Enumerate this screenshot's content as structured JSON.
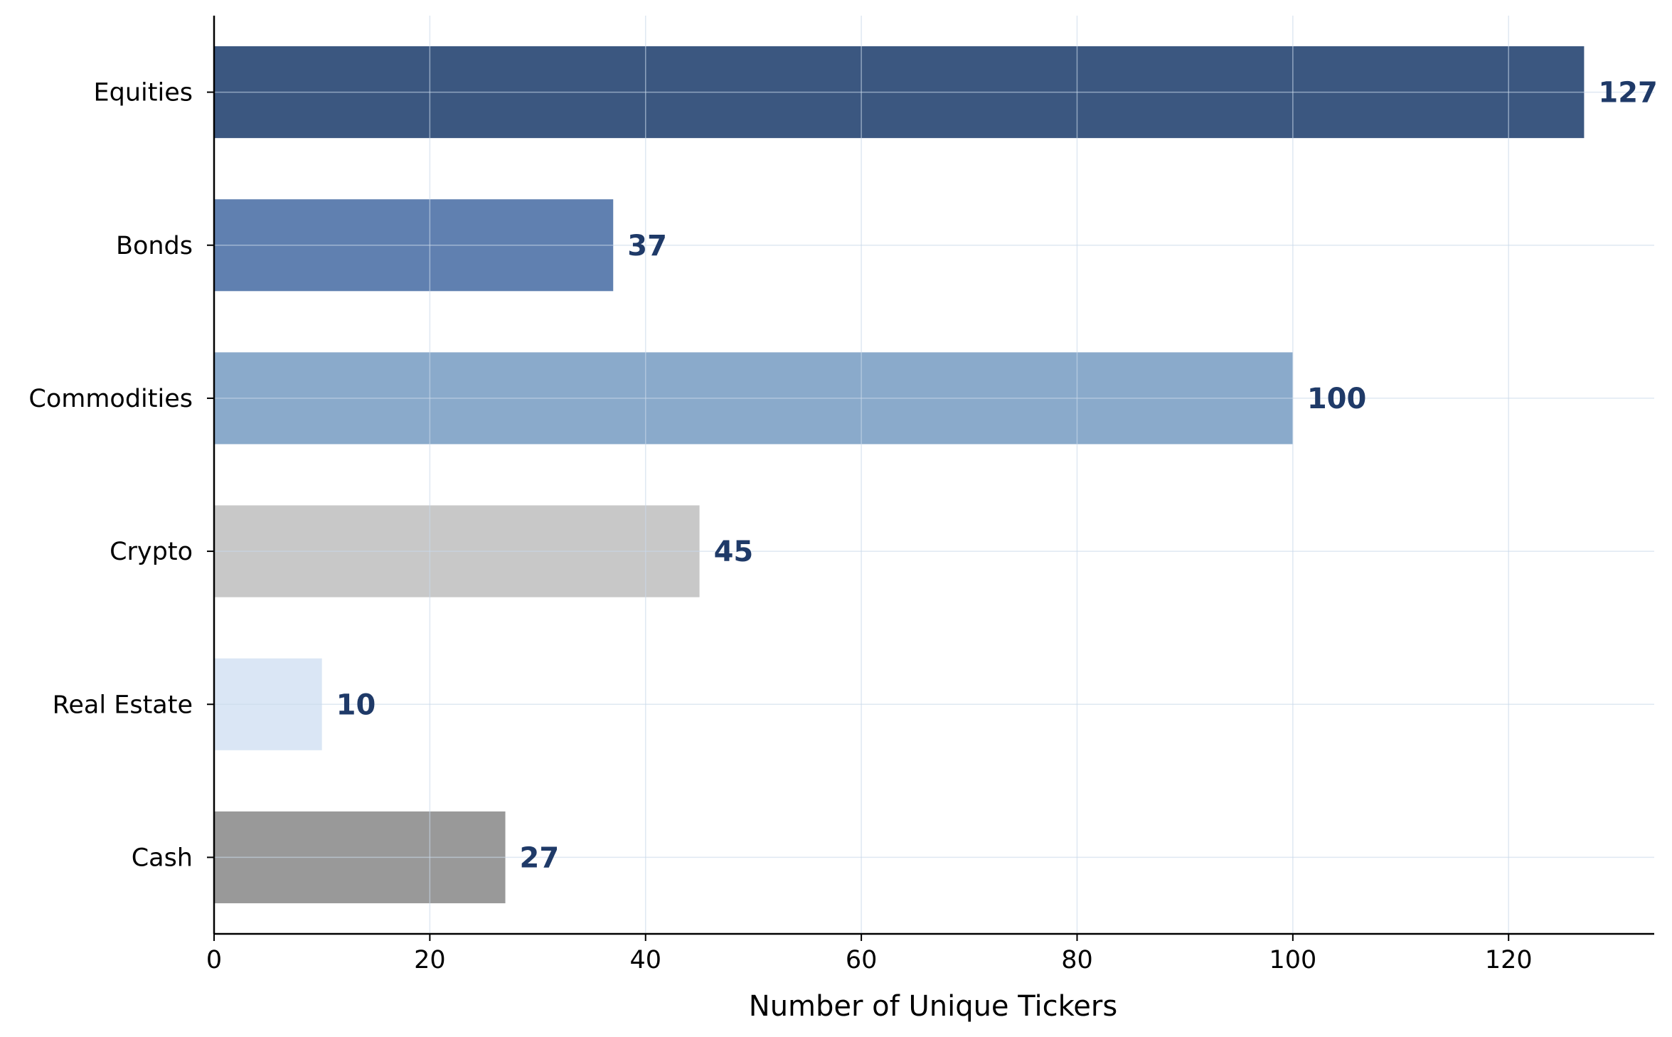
{
  "chart_data": {
    "type": "bar",
    "orientation": "horizontal",
    "categories": [
      "Equities",
      "Bonds",
      "Commodities",
      "Crypto",
      "Real Estate",
      "Cash"
    ],
    "values": [
      127,
      37,
      100,
      45,
      10,
      27
    ],
    "bar_colors": [
      "#3b5780",
      "#6080b0",
      "#8aaacb",
      "#c8c8c8",
      "#dae6f5",
      "#999999"
    ],
    "value_label_color": "#1f3a68",
    "title": "",
    "xlabel": "Number of Unique Tickers",
    "ylabel": "",
    "xlim": [
      0,
      133.5
    ],
    "xticks": [
      0,
      20,
      40,
      60,
      80,
      100,
      120
    ],
    "grid": true,
    "show_value_labels": true
  }
}
